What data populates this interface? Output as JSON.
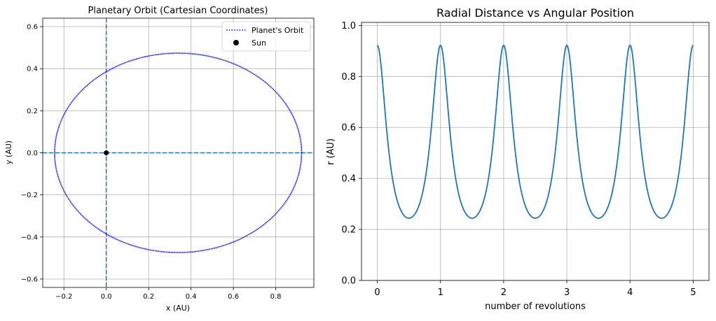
{
  "chart_data": [
    {
      "type": "line",
      "title": "Planetary Orbit (Cartesian Coordinates)",
      "xlabel": "x (AU)",
      "ylabel": "y (AU)",
      "xlim": [
        -0.3,
        0.98
      ],
      "ylim": [
        -0.64,
        0.64
      ],
      "xticks": [
        -0.2,
        0.0,
        0.2,
        0.4,
        0.6,
        0.8
      ],
      "yticks": [
        -0.6,
        -0.4,
        -0.2,
        0.0,
        0.2,
        0.4,
        0.6
      ],
      "xtick_labels": [
        "−0.2",
        "0.0",
        "0.2",
        "0.4",
        "0.6",
        "0.8"
      ],
      "ytick_labels": [
        "−0.6",
        "−0.4",
        "−0.2",
        "0.0",
        "0.2",
        "0.4",
        "0.6"
      ],
      "grid": true,
      "legend_position": "top-right",
      "orbit": {
        "name": "Planet's Orbit",
        "color": "#0000ff",
        "style": "dotted",
        "perihelion_x": 0.922,
        "aphelion_x": -0.244,
        "semi_minor_axis": 0.474
      },
      "sun": {
        "name": "Sun",
        "x": 0.0,
        "y": 0.0,
        "color": "#000000"
      },
      "reference_lines": {
        "x": 0.0,
        "y": 0.0,
        "color": "#1f77b4",
        "style": "dashed"
      }
    },
    {
      "type": "line",
      "title": "Radial Distance vs Angular Position",
      "xlabel": "number of revolutions",
      "ylabel": "r (AU)",
      "xlim": [
        -0.25,
        5.25
      ],
      "ylim": [
        0.0,
        1.012
      ],
      "xticks": [
        0,
        1,
        2,
        3,
        4,
        5
      ],
      "yticks": [
        0.0,
        0.2,
        0.4,
        0.6,
        0.8,
        1.0
      ],
      "xtick_labels": [
        "0",
        "1",
        "2",
        "3",
        "4",
        "5"
      ],
      "ytick_labels": [
        "0.0",
        "0.2",
        "0.4",
        "0.6",
        "0.8",
        "1.0"
      ],
      "grid": true,
      "series": [
        {
          "color": "#1f77b4",
          "revolutions": [
            0,
            5
          ],
          "r_max": 0.922,
          "r_min": 0.244,
          "period": 1.0
        }
      ]
    }
  ]
}
